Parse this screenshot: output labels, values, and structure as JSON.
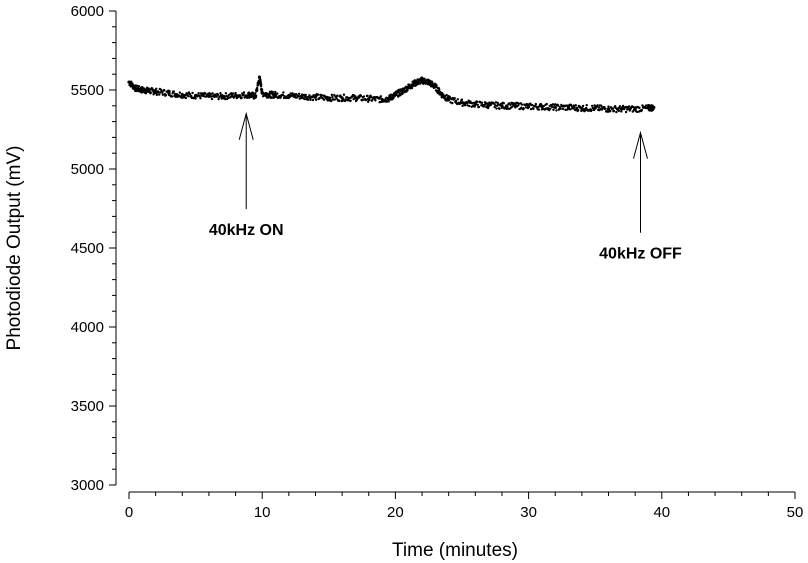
{
  "chart_data": {
    "type": "scatter",
    "title": "",
    "xlabel": "Time (minutes)",
    "ylabel": "Photodiode Output (mV)",
    "xlim": [
      0,
      50
    ],
    "ylim": [
      3000,
      6000
    ],
    "xticks": [
      0,
      10,
      20,
      30,
      40,
      50
    ],
    "yticks": [
      3000,
      3500,
      4000,
      4500,
      5000,
      5500,
      6000
    ],
    "grid": false,
    "legend": "none",
    "marker_color": "#000000",
    "series": [
      {
        "x": [
          0,
          0.5,
          1,
          1.5,
          2,
          3,
          4,
          5,
          6,
          7,
          8,
          9,
          9.5,
          9.8,
          10,
          10.5,
          11,
          12,
          13,
          14,
          15,
          16,
          17,
          18,
          19,
          19.5,
          20,
          20.5,
          21,
          21.5,
          22,
          22.5,
          23,
          23.5,
          24,
          25,
          26,
          27,
          28,
          29,
          30,
          31,
          32,
          33,
          34,
          35,
          36,
          37,
          38,
          39,
          39.4
        ],
        "y": [
          5550,
          5510,
          5500,
          5495,
          5490,
          5480,
          5470,
          5465,
          5460,
          5460,
          5465,
          5470,
          5460,
          5580,
          5480,
          5470,
          5470,
          5465,
          5460,
          5455,
          5450,
          5450,
          5450,
          5445,
          5440,
          5445,
          5470,
          5490,
          5520,
          5545,
          5560,
          5550,
          5520,
          5470,
          5440,
          5420,
          5410,
          5405,
          5400,
          5400,
          5395,
          5395,
          5390,
          5390,
          5385,
          5385,
          5380,
          5380,
          5380,
          5385,
          5390
        ]
      }
    ],
    "annotations": [
      {
        "text": "40kHz ON",
        "x": 8.8,
        "y": 5350,
        "label_y": 4620
      },
      {
        "text": "40kHz OFF",
        "x": 38.4,
        "y": 5230,
        "label_y": 4470
      }
    ]
  }
}
